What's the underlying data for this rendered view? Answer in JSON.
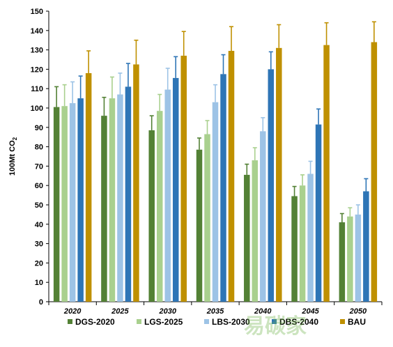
{
  "chart_data": {
    "type": "bar",
    "title": "",
    "xlabel": "",
    "ylabel_main": "100Mt CO",
    "ylabel_sub": "2",
    "ylim": [
      0,
      150
    ],
    "yticks": [
      0,
      10,
      20,
      30,
      40,
      50,
      60,
      70,
      80,
      90,
      100,
      110,
      120,
      130,
      140,
      150
    ],
    "grid": false,
    "error_bars": true,
    "legend_position": "bottom",
    "categories": [
      "2020",
      "2025",
      "2030",
      "2035",
      "2040",
      "2045",
      "2050"
    ],
    "series": [
      {
        "name": "DGS-2020",
        "color": "#538135",
        "values": [
          100.5,
          96,
          88.5,
          78.5,
          65.5,
          54.5,
          41
        ],
        "errors": [
          10.5,
          9.5,
          7.5,
          6,
          5.5,
          5,
          4.5
        ]
      },
      {
        "name": "LGS-2025",
        "color": "#a9d08e",
        "values": [
          101,
          105,
          98.5,
          86.5,
          73,
          60,
          44
        ],
        "errors": [
          11,
          11,
          8.5,
          7,
          6.5,
          5.5,
          4.5
        ]
      },
      {
        "name": "LBS-2030",
        "color": "#9dc3e6",
        "values": [
          102.5,
          107,
          109.5,
          103,
          88,
          66,
          45
        ],
        "errors": [
          11,
          11,
          11,
          9,
          7,
          6.5,
          5
        ]
      },
      {
        "name": "DBS-2040",
        "color": "#2e75b6",
        "values": [
          105,
          111,
          115.5,
          117.5,
          120,
          91.5,
          57
        ],
        "errors": [
          11.5,
          12,
          11,
          10,
          9,
          8,
          6.5
        ]
      },
      {
        "name": "BAU",
        "color": "#bf9000",
        "values": [
          118,
          122.5,
          127,
          129.5,
          131,
          132.5,
          134
        ],
        "errors": [
          11.5,
          12.5,
          12.5,
          12.5,
          12,
          11.5,
          10.5
        ]
      }
    ]
  },
  "watermark_text": "易碳家 tanjiayi.com"
}
